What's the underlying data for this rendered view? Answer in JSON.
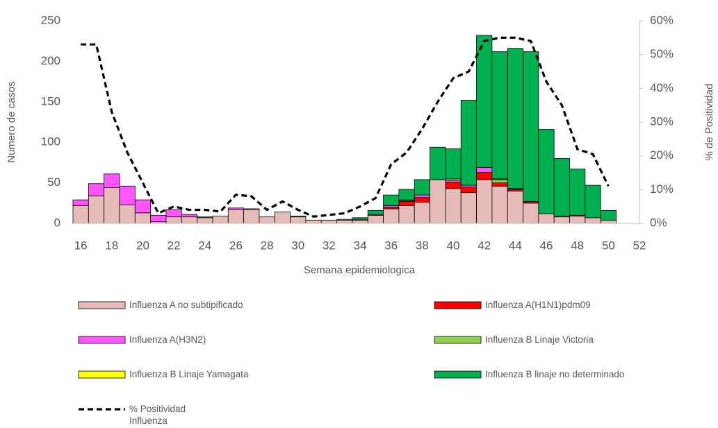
{
  "chart_data": {
    "type": "bar",
    "stacked": true,
    "y_label": "Numero de casos",
    "y2_label": "% de Positividad",
    "x_label": "Semana epidemiologica",
    "x": [
      16,
      17,
      18,
      19,
      20,
      21,
      22,
      23,
      24,
      25,
      26,
      27,
      28,
      29,
      30,
      31,
      32,
      33,
      34,
      35,
      36,
      37,
      38,
      39,
      40,
      41,
      42,
      43,
      44,
      45,
      46,
      47,
      48,
      49,
      50
    ],
    "xlim": [
      15.5,
      52
    ],
    "xticks": [
      16,
      18,
      20,
      22,
      24,
      26,
      28,
      30,
      32,
      34,
      36,
      38,
      40,
      42,
      44,
      46,
      48,
      50,
      52
    ],
    "ylim": [
      0,
      250
    ],
    "yticks": [
      0,
      50,
      100,
      150,
      200,
      250
    ],
    "y2lim": [
      0,
      60
    ],
    "y2ticks": [
      {
        "value": 0,
        "label": "0%"
      },
      {
        "value": 10,
        "label": "10%"
      },
      {
        "value": 20,
        "label": "20%"
      },
      {
        "value": 30,
        "label": "30%"
      },
      {
        "value": 40,
        "label": "40%"
      },
      {
        "value": 50,
        "label": "50%"
      },
      {
        "value": 60,
        "label": "60%"
      }
    ],
    "grid": false,
    "series": [
      {
        "name": "Influenza A no subtipificado",
        "color": "#e6bab6",
        "values": [
          22,
          34,
          44,
          23,
          13,
          2,
          8,
          8,
          7,
          9,
          17,
          17,
          8,
          14,
          8,
          4,
          4,
          4,
          4,
          10,
          18,
          22,
          26,
          54,
          43,
          38,
          54,
          46,
          40,
          25,
          12,
          8,
          9,
          7,
          4
        ]
      },
      {
        "name": "Influenza A(H1N1)pdm09",
        "color": "#ff0000",
        "values": [
          0,
          0,
          0,
          0,
          0,
          0,
          0,
          0,
          0,
          0,
          0,
          0,
          0,
          0,
          0,
          0,
          0,
          0,
          0,
          0,
          2,
          5,
          6,
          0,
          8,
          7,
          9,
          4,
          2,
          2,
          0,
          0,
          1,
          0,
          0
        ]
      },
      {
        "name": "Influenza A(H3N2)",
        "color": "#ff55ff",
        "values": [
          7,
          15,
          17,
          23,
          16,
          8,
          9,
          3,
          0,
          0,
          2,
          1,
          0,
          0,
          0,
          0,
          0,
          0,
          0,
          1,
          2,
          1,
          3,
          0,
          2,
          2,
          6,
          0,
          1,
          0,
          0,
          0,
          0,
          0,
          0
        ]
      },
      {
        "name": "Influenza B Linaje Victoria",
        "color": "#92d050",
        "values": [
          0,
          0,
          0,
          0,
          0,
          0,
          0,
          0,
          0,
          0,
          0,
          0,
          0,
          0,
          0,
          0,
          0,
          1,
          1,
          0,
          0,
          1,
          0,
          0,
          2,
          0,
          0,
          4,
          0,
          0,
          0,
          1,
          0,
          0,
          0
        ]
      },
      {
        "name": "Influenza B Linaje Yamagata",
        "color": "#ffff00",
        "values": [
          0,
          0,
          0,
          0,
          0,
          0,
          0,
          0,
          0,
          0,
          0,
          0,
          0,
          0,
          0,
          0,
          0,
          0,
          0,
          0,
          0,
          0,
          0,
          0,
          0,
          0,
          0,
          1,
          0,
          0,
          0,
          0,
          0,
          0,
          0
        ]
      },
      {
        "name": "Influenza B linaje no determinado",
        "color": "#00b050",
        "values": [
          0,
          0,
          0,
          0,
          0,
          0,
          0,
          0,
          1,
          0,
          0,
          0,
          0,
          0,
          1,
          0,
          0,
          0,
          2,
          5,
          13,
          13,
          19,
          40,
          37,
          105,
          163,
          157,
          173,
          185,
          104,
          71,
          57,
          40,
          12
        ]
      },
      {
        "name": "% Positividad Influenza",
        "type": "line",
        "axis": "y2",
        "color": "#000000",
        "dashed": true,
        "values": [
          53,
          53,
          33,
          21,
          12,
          3,
          5,
          4,
          4,
          3.5,
          8.5,
          8,
          4,
          6.5,
          4,
          2,
          2.5,
          3,
          5,
          7.5,
          17.5,
          21,
          28,
          36,
          43,
          45,
          54,
          55,
          55,
          54,
          42,
          35,
          22,
          20.5,
          11
        ]
      }
    ]
  }
}
